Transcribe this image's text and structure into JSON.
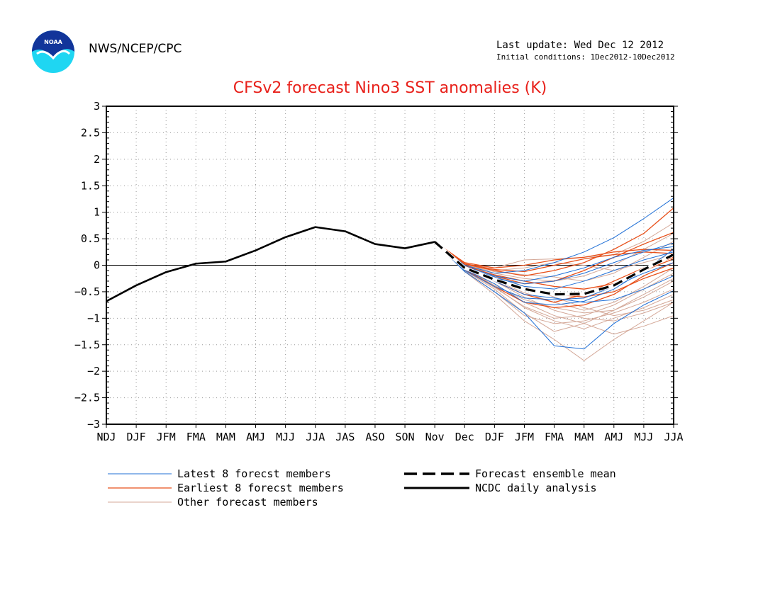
{
  "header": {
    "agency": "NWS/NCEP/CPC",
    "last_update": "Last update: Wed Dec 12 2012",
    "initial_conditions": "Initial conditions: 1Dec2012-10Dec2012",
    "logo_text": "NOAA"
  },
  "chart_data": {
    "type": "line",
    "title": "CFSv2 forecast Nino3 SST anomalies (K)",
    "xlabel": "",
    "ylabel": "",
    "ylim": [
      -3,
      3
    ],
    "yticks": [
      3,
      2.5,
      2,
      1.5,
      1,
      0.5,
      0,
      -0.5,
      -1,
      -1.5,
      -2,
      -2.5,
      -3
    ],
    "categories": [
      "NDJ",
      "DJF",
      "JFM",
      "FMA",
      "MAM",
      "AMJ",
      "MJJ",
      "JJA",
      "JAS",
      "ASO",
      "SON",
      "Nov",
      "Dec",
      "DJF",
      "JFM",
      "FMA",
      "MAM",
      "AMJ",
      "MJJ",
      "JJA"
    ],
    "grid": true,
    "legend_placement": "bottom",
    "colors": {
      "latest": "#1f6fd6",
      "earliest": "#e8501a",
      "other": "#d4a898",
      "mean": "#000000",
      "analysis": "#000000",
      "title": "#e8201a"
    },
    "series": [
      {
        "name": "NCDC daily analysis",
        "group": "analysis",
        "x": [
          0,
          1,
          2,
          3,
          4,
          5,
          6,
          7,
          8,
          9,
          10,
          11
        ],
        "values": [
          -0.68,
          -0.38,
          -0.13,
          0.03,
          0.07,
          0.28,
          0.53,
          0.72,
          0.64,
          0.4,
          0.32,
          0.44
        ]
      },
      {
        "name": "Forecast ensemble mean",
        "group": "mean",
        "x": [
          11,
          12,
          13,
          14,
          15,
          16,
          17,
          18,
          19
        ],
        "values": [
          0.44,
          -0.05,
          -0.27,
          -0.45,
          -0.55,
          -0.54,
          -0.38,
          -0.08,
          0.2
        ]
      },
      {
        "group": "latest",
        "x": [
          11,
          12,
          13,
          14,
          15,
          16,
          17,
          18,
          19
        ],
        "values": [
          0.44,
          -0.12,
          -0.5,
          -0.9,
          -1.52,
          -1.58,
          -1.1,
          -0.75,
          -0.48
        ]
      },
      {
        "group": "latest",
        "x": [
          11,
          12,
          13,
          14,
          15,
          16,
          17,
          18,
          19
        ],
        "values": [
          0.44,
          -0.08,
          -0.35,
          -0.7,
          -0.75,
          -0.68,
          -0.45,
          -0.1,
          0.3
        ]
      },
      {
        "group": "latest",
        "x": [
          11,
          12,
          13,
          14,
          15,
          16,
          17,
          18,
          19
        ],
        "values": [
          0.44,
          0.0,
          -0.15,
          -0.1,
          0.05,
          0.25,
          0.52,
          0.88,
          1.27
        ]
      },
      {
        "group": "latest",
        "x": [
          11,
          12,
          13,
          14,
          15,
          16,
          17,
          18,
          19
        ],
        "values": [
          0.44,
          -0.05,
          -0.25,
          -0.35,
          -0.3,
          -0.15,
          0.05,
          0.25,
          0.42
        ]
      },
      {
        "group": "latest",
        "x": [
          11,
          12,
          13,
          14,
          15,
          16,
          17,
          18,
          19
        ],
        "values": [
          0.44,
          -0.1,
          -0.4,
          -0.62,
          -0.65,
          -0.62,
          -0.4,
          -0.15,
          0.05
        ]
      },
      {
        "group": "latest",
        "x": [
          11,
          12,
          13,
          14,
          15,
          16,
          17,
          18,
          19
        ],
        "values": [
          0.44,
          -0.02,
          -0.2,
          -0.3,
          -0.2,
          -0.05,
          0.15,
          0.28,
          0.35
        ]
      },
      {
        "group": "latest",
        "x": [
          11,
          12,
          13,
          14,
          15,
          16,
          17,
          18,
          19
        ],
        "values": [
          0.44,
          -0.06,
          -0.3,
          -0.55,
          -0.62,
          -0.7,
          -0.65,
          -0.45,
          -0.2
        ]
      },
      {
        "group": "latest",
        "x": [
          11,
          12,
          13,
          14,
          15,
          16,
          17,
          18,
          19
        ],
        "values": [
          0.44,
          -0.04,
          -0.22,
          -0.4,
          -0.45,
          -0.3,
          -0.1,
          0.1,
          0.25
        ]
      },
      {
        "group": "earliest",
        "x": [
          11,
          12,
          13,
          14,
          15,
          16,
          17,
          18,
          19
        ],
        "values": [
          0.44,
          0.05,
          -0.05,
          0.0,
          0.1,
          0.15,
          0.25,
          0.3,
          0.28
        ]
      },
      {
        "group": "earliest",
        "x": [
          11,
          12,
          13,
          14,
          15,
          16,
          17,
          18,
          19
        ],
        "values": [
          0.44,
          0.02,
          -0.1,
          -0.2,
          -0.1,
          0.05,
          0.3,
          0.6,
          1.08
        ]
      },
      {
        "group": "earliest",
        "x": [
          11,
          12,
          13,
          14,
          15,
          16,
          17,
          18,
          19
        ],
        "values": [
          0.44,
          0.0,
          -0.2,
          -0.35,
          -0.3,
          -0.1,
          0.15,
          0.4,
          0.62
        ]
      },
      {
        "group": "earliest",
        "x": [
          11,
          12,
          13,
          14,
          15,
          16,
          17,
          18,
          19
        ],
        "values": [
          0.44,
          -0.05,
          -0.3,
          -0.55,
          -0.7,
          -0.55,
          -0.3,
          -0.05,
          0.15
        ]
      },
      {
        "group": "earliest",
        "x": [
          11,
          12,
          13,
          14,
          15,
          16,
          17,
          18,
          19
        ],
        "values": [
          0.44,
          -0.08,
          -0.4,
          -0.7,
          -0.8,
          -0.75,
          -0.55,
          -0.2,
          0.05
        ]
      },
      {
        "group": "earliest",
        "x": [
          11,
          12,
          13,
          14,
          15,
          16,
          17,
          18,
          19
        ],
        "values": [
          0.44,
          0.03,
          -0.08,
          -0.12,
          0.0,
          0.12,
          0.2,
          0.25,
          0.22
        ]
      },
      {
        "group": "earliest",
        "x": [
          11,
          12,
          13,
          14,
          15,
          16,
          17,
          18,
          19
        ],
        "values": [
          0.44,
          -0.02,
          -0.18,
          -0.3,
          -0.4,
          -0.45,
          -0.35,
          -0.1,
          0.12
        ]
      },
      {
        "group": "earliest",
        "x": [
          11,
          12,
          13,
          14,
          15,
          16,
          17,
          18,
          19
        ],
        "values": [
          0.44,
          -0.04,
          -0.25,
          -0.45,
          -0.55,
          -0.6,
          -0.5,
          -0.25,
          -0.05
        ]
      },
      {
        "group": "other",
        "x": [
          11,
          12,
          13,
          14,
          15,
          16,
          17,
          18,
          19
        ],
        "values": [
          0.44,
          -0.1,
          -0.45,
          -0.9,
          -1.25,
          -1.1,
          -0.85,
          -0.55,
          -0.25
        ]
      },
      {
        "group": "other",
        "x": [
          11,
          12,
          13,
          14,
          15,
          16,
          17,
          18,
          19
        ],
        "values": [
          0.44,
          -0.12,
          -0.55,
          -1.05,
          -1.4,
          -1.8,
          -1.4,
          -1.05,
          -0.7
        ]
      },
      {
        "group": "other",
        "x": [
          11,
          12,
          13,
          14,
          15,
          16,
          17,
          18,
          19
        ],
        "values": [
          0.44,
          -0.08,
          -0.4,
          -0.8,
          -1.05,
          -1.2,
          -1.0,
          -0.8,
          -0.55
        ]
      },
      {
        "group": "other",
        "x": [
          11,
          12,
          13,
          14,
          15,
          16,
          17,
          18,
          19
        ],
        "values": [
          0.44,
          -0.05,
          -0.3,
          -0.6,
          -0.85,
          -1.0,
          -1.05,
          -0.9,
          -0.7
        ]
      },
      {
        "group": "other",
        "x": [
          11,
          12,
          13,
          14,
          15,
          16,
          17,
          18,
          19
        ],
        "values": [
          0.44,
          -0.06,
          -0.35,
          -0.7,
          -0.95,
          -1.1,
          -1.3,
          -1.15,
          -0.95
        ]
      },
      {
        "group": "other",
        "x": [
          11,
          12,
          13,
          14,
          15,
          16,
          17,
          18,
          19
        ],
        "values": [
          0.44,
          0.02,
          -0.05,
          0.1,
          0.12,
          0.15,
          0.2,
          0.45,
          0.8
        ]
      },
      {
        "group": "other",
        "x": [
          11,
          12,
          13,
          14,
          15,
          16,
          17,
          18,
          19
        ],
        "values": [
          0.44,
          -0.02,
          -0.15,
          -0.25,
          -0.3,
          -0.2,
          0.0,
          0.3,
          0.6
        ]
      },
      {
        "group": "other",
        "x": [
          11,
          12,
          13,
          14,
          15,
          16,
          17,
          18,
          19
        ],
        "values": [
          0.44,
          -0.09,
          -0.42,
          -0.78,
          -1.0,
          -0.95,
          -0.75,
          -0.45,
          -0.15
        ]
      },
      {
        "group": "other",
        "x": [
          11,
          12,
          13,
          14,
          15,
          16,
          17,
          18,
          19
        ],
        "values": [
          0.44,
          -0.03,
          -0.2,
          -0.4,
          -0.6,
          -0.8,
          -0.95,
          -0.85,
          -0.65
        ]
      },
      {
        "group": "other",
        "x": [
          11,
          12,
          13,
          14,
          15,
          16,
          17,
          18,
          19
        ],
        "values": [
          0.44,
          -0.07,
          -0.38,
          -0.65,
          -0.8,
          -0.9,
          -0.85,
          -0.6,
          -0.3
        ]
      },
      {
        "group": "other",
        "x": [
          11,
          12,
          13,
          14,
          15,
          16,
          17,
          18,
          19
        ],
        "values": [
          0.44,
          0.0,
          -0.1,
          -0.05,
          0.05,
          0.0,
          -0.1,
          0.05,
          0.2
        ]
      },
      {
        "group": "other",
        "x": [
          11,
          12,
          13,
          14,
          15,
          16,
          17,
          18,
          19
        ],
        "values": [
          0.44,
          -0.04,
          -0.28,
          -0.52,
          -0.7,
          -0.85,
          -0.7,
          -0.4,
          -0.05
        ]
      },
      {
        "group": "other",
        "x": [
          11,
          12,
          13,
          14,
          15,
          16,
          17,
          18,
          19
        ],
        "values": [
          0.44,
          -0.01,
          -0.12,
          -0.18,
          -0.22,
          -0.3,
          -0.15,
          0.15,
          0.45
        ]
      },
      {
        "group": "other",
        "x": [
          11,
          12,
          13,
          14,
          15,
          16,
          17,
          18,
          19
        ],
        "values": [
          0.44,
          -0.11,
          -0.5,
          -0.95,
          -1.1,
          -1.05,
          -0.9,
          -0.7,
          -0.45
        ]
      }
    ],
    "legend": [
      {
        "label": "Latest 8 forecst members",
        "style": "latest"
      },
      {
        "label": "Earliest 8 forecst members",
        "style": "earliest"
      },
      {
        "label": "Other forecast members",
        "style": "other"
      },
      {
        "label": "Forecast ensemble mean",
        "style": "mean"
      },
      {
        "label": "NCDC daily analysis",
        "style": "analysis"
      }
    ]
  }
}
